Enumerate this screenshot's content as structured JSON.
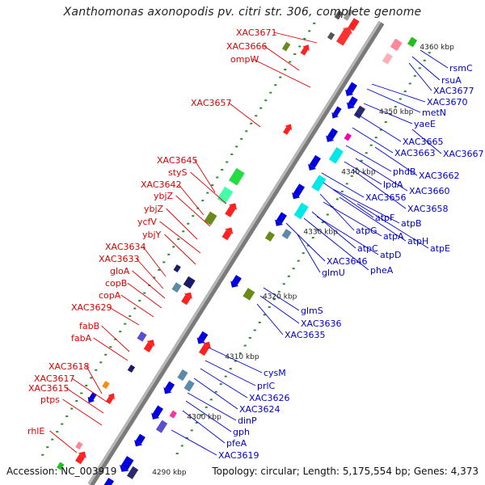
{
  "title": "Xanthomonas axonopodis pv. citri str. 306, complete genome",
  "accession": "Accession: NC_003919",
  "summary": "Topology: circular; Length: 5,175,554 bp; Genes: 4,373",
  "scale_labels": [
    "4360 kbp",
    "4350 kbp",
    "4340 kbp",
    "4330 kbp",
    "4320 kbp",
    "4310 kbp",
    "4300 kbp",
    "4290 kbp"
  ],
  "colors": {
    "left_labels": "#e00000",
    "right_labels": "#0000cc",
    "backbone": "#888888"
  },
  "left_labels": [
    "XAC3671",
    "XAC3666",
    "ompW",
    "XAC3657",
    "XAC3645",
    "styS",
    "XAC3642",
    "ybjZ",
    "ybjZ",
    "ycfV",
    "ybjY",
    "XAC3634",
    "XAC3633",
    "gloA",
    "copB",
    "copA",
    "XAC3629",
    "fabB",
    "fabA",
    "XAC3618",
    "XAC3617",
    "XAC3615",
    "ptps",
    "rhlE"
  ],
  "right_labels": [
    "rsmC",
    "rsuA",
    "XAC3677",
    "XAC3670",
    "metN",
    "yaeE",
    "XAC3665",
    "XAC3667",
    "XAC3663",
    "phdB",
    "XAC3662",
    "lpdA",
    "XAC3660",
    "XAC3656",
    "XAC3658",
    "atpF",
    "atpB",
    "atpG",
    "atpA",
    "atpH",
    "atpE",
    "atpC",
    "atpD",
    "XAC3646",
    "pheA",
    "glmU",
    "glmS",
    "XAC3636",
    "XAC3635",
    "cysM",
    "prlC",
    "XAC3626",
    "XAC3624",
    "dinP",
    "gph",
    "pfeA",
    "XAC3619"
  ]
}
